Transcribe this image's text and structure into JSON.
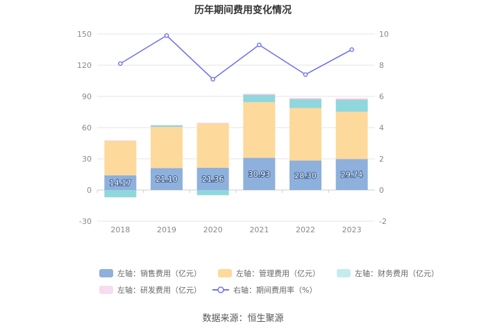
{
  "chart_data": {
    "type": "bar",
    "title": "历年期间费用变化情况",
    "categories": [
      "2018",
      "2019",
      "2020",
      "2021",
      "2022",
      "2023"
    ],
    "left_axis": {
      "min": -30,
      "max": 150,
      "ticks": [
        "-30",
        "0",
        "30",
        "60",
        "90",
        "120",
        "150"
      ]
    },
    "right_axis": {
      "min": -2,
      "max": 10,
      "ticks": [
        "-2",
        "0",
        "2",
        "4",
        "6",
        "8",
        "10"
      ]
    },
    "series": [
      {
        "name": "左轴：销售费用（亿元）",
        "axis": "left",
        "color": "#8eb0dc",
        "values": [
          14.17,
          21.1,
          21.36,
          30.93,
          28.3,
          29.74
        ],
        "labels": [
          "14.17",
          "21.10",
          "21.36",
          "30.93",
          "28.30",
          "29.74"
        ]
      },
      {
        "name": "左轴：管理费用（亿元）",
        "axis": "left",
        "color": "#fdd99b",
        "values": [
          33.0,
          39.5,
          42.5,
          53.5,
          50.5,
          45.5
        ]
      },
      {
        "name": "左轴：财务费用（亿元）",
        "axis": "left",
        "color": "#8fd7dc",
        "values": [
          -7.0,
          1.5,
          -5.0,
          7.0,
          8.5,
          11.5
        ]
      },
      {
        "name": "左轴：研发费用（亿元）",
        "axis": "left",
        "color": "#f1c4e4",
        "values": [
          0.5,
          0.4,
          0.6,
          1.0,
          1.0,
          1.2
        ]
      },
      {
        "name": "右轴：期间费用率（%）",
        "axis": "right",
        "type": "line",
        "color": "#6f73ee",
        "values": [
          8.1,
          9.9,
          7.1,
          9.3,
          7.4,
          9.0
        ]
      }
    ],
    "source": "数据来源：恒生聚源"
  }
}
